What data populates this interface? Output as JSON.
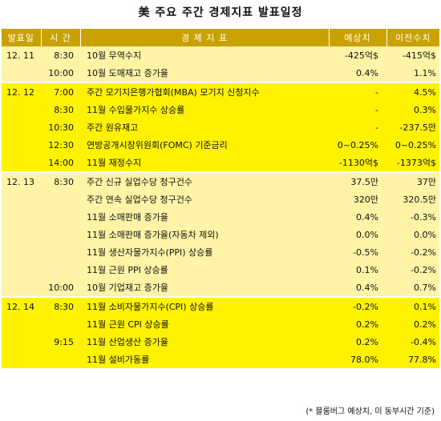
{
  "title": "美 주요 주간 경제지표 발표일정",
  "headers": {
    "date": "발표일",
    "time": "시 간",
    "indicator": "경 제 지 표",
    "forecast": "예상치",
    "previous": "이전수치"
  },
  "groups": [
    {
      "date": "12. 11",
      "rows": [
        {
          "time": "8:30",
          "indicator": "10월 무역수지",
          "forecast": "-425억$",
          "previous": "-415억$"
        },
        {
          "time": "10:00",
          "indicator": "10월 도매재고 증가율",
          "forecast": "0.4%",
          "previous": "1.1%"
        }
      ]
    },
    {
      "date": "12. 12",
      "rows": [
        {
          "time": "7:00",
          "indicator": "주간 모기지은행가협회(MBA) 모기지 신청지수",
          "forecast": "-",
          "previous": "4.5%"
        },
        {
          "time": "8:30",
          "indicator": "11월 수입물가지수 상승률",
          "forecast": "-",
          "previous": "0.3%"
        },
        {
          "time": "10:30",
          "indicator": "주간 원유재고",
          "forecast": "-",
          "previous": "-237.5만"
        },
        {
          "time": "12:30",
          "indicator": "연방공개시장위원회(FOMC) 기준금리",
          "forecast": "0~0.25%",
          "previous": "0~0.25%"
        },
        {
          "time": "14:00",
          "indicator": "11월 재정수지",
          "forecast": "-1130억$",
          "previous": "-1373억$"
        }
      ]
    },
    {
      "date": "12. 13",
      "rows": [
        {
          "time": "8:30",
          "indicator": "주간 신규 실업수당 청구건수",
          "forecast": "37.5만",
          "previous": "37만"
        },
        {
          "time": "",
          "indicator": "주간 연속 실업수당 청구건수",
          "forecast": "320만",
          "previous": "320.5만"
        },
        {
          "time": "",
          "indicator": "11월 소매판매 증가율",
          "forecast": "0.4%",
          "previous": "-0.3%"
        },
        {
          "time": "",
          "indicator": "11월 소매판매 증가율(자동차 제외)",
          "forecast": "0.0%",
          "previous": "0.0%"
        },
        {
          "time": "",
          "indicator": "11월 생산자물가지수(PPI) 상승률",
          "forecast": "-0.5%",
          "previous": "-0.2%"
        },
        {
          "time": "",
          "indicator": "11월 근원 PPI 상승률",
          "forecast": "0.1%",
          "previous": "-0.2%"
        },
        {
          "time": "10:00",
          "indicator": "10월 기업재고 증가율",
          "forecast": "0.4%",
          "previous": "0.7%"
        }
      ]
    },
    {
      "date": "12. 14",
      "rows": [
        {
          "time": "8:30",
          "indicator": "11월 소비자물가지수(CPI) 상승률",
          "forecast": "-0.2%",
          "previous": "0.1%"
        },
        {
          "time": "",
          "indicator": "11월 근원 CPI 상승률",
          "forecast": "0.2%",
          "previous": "0.2%"
        },
        {
          "time": "9:15",
          "indicator": "11월 산업생산 증가율",
          "forecast": "0.2%",
          "previous": "-0.4%"
        },
        {
          "time": "",
          "indicator": "11월 설비가동률",
          "forecast": "78.0%",
          "previous": "77.8%"
        }
      ]
    }
  ],
  "footnote": "(* 블룸버그 예상치, 미 동부시간 기준)",
  "colors": {
    "header": "#c9a100",
    "group_light": "#fff4a6",
    "group_bright": "#fff200"
  }
}
